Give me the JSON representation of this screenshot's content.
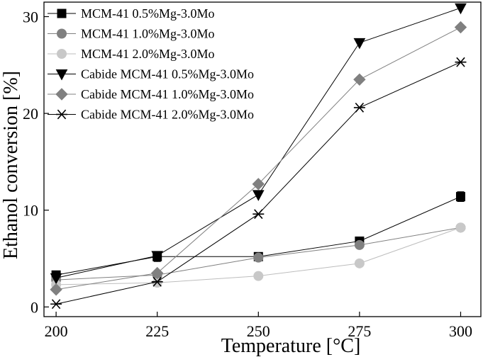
{
  "chart_data": {
    "type": "line",
    "xlabel": "Temperature [°C]",
    "ylabel": "Ethanol conversion [%]",
    "x": [
      200,
      225,
      250,
      275,
      300
    ],
    "xlim": [
      197,
      305
    ],
    "ylim": [
      -1,
      31.5
    ],
    "xticks": [
      200,
      225,
      250,
      275,
      300
    ],
    "yticks": [
      0,
      10,
      20,
      30
    ],
    "legend_position": "top-left",
    "series": [
      {
        "name": "MCM-41 0.5%Mg-3.0Mo",
        "marker": "square",
        "color": "#000000",
        "line_color": "#000000",
        "values": [
          3.3,
          5.2,
          5.2,
          6.8,
          11.4
        ],
        "error": [
          0.3,
          0.5,
          0.3,
          0.3,
          0.5
        ]
      },
      {
        "name": "MCM-41 1.0%Mg-3.0Mo",
        "marker": "circle",
        "color": "#808080",
        "line_color": "#808080",
        "values": [
          2.8,
          3.3,
          5.1,
          6.4,
          8.2
        ]
      },
      {
        "name": "MCM-41 2.0%Mg-3.0Mo",
        "marker": "circle",
        "color": "#c8c8c8",
        "line_color": "#bdbdbd",
        "values": [
          2.3,
          2.5,
          3.2,
          4.5,
          8.2
        ]
      },
      {
        "name": "Cabide MCM-41 0.5%Mg-3.0Mo",
        "marker": "triangle-down",
        "color": "#000000",
        "line_color": "#000000",
        "values": [
          3.0,
          5.3,
          11.6,
          27.3,
          30.9
        ]
      },
      {
        "name": "Cabide MCM-41 1.0%Mg-3.0Mo",
        "marker": "diamond",
        "color": "#808080",
        "line_color": "#808080",
        "values": [
          1.8,
          3.5,
          12.7,
          23.5,
          28.9
        ]
      },
      {
        "name": "Cabide MCM-41 2.0%Mg-3.0Mo",
        "marker": "asterisk",
        "color": "#000000",
        "line_color": "#000000",
        "values": [
          0.3,
          2.6,
          9.6,
          20.6,
          25.3
        ]
      }
    ]
  }
}
